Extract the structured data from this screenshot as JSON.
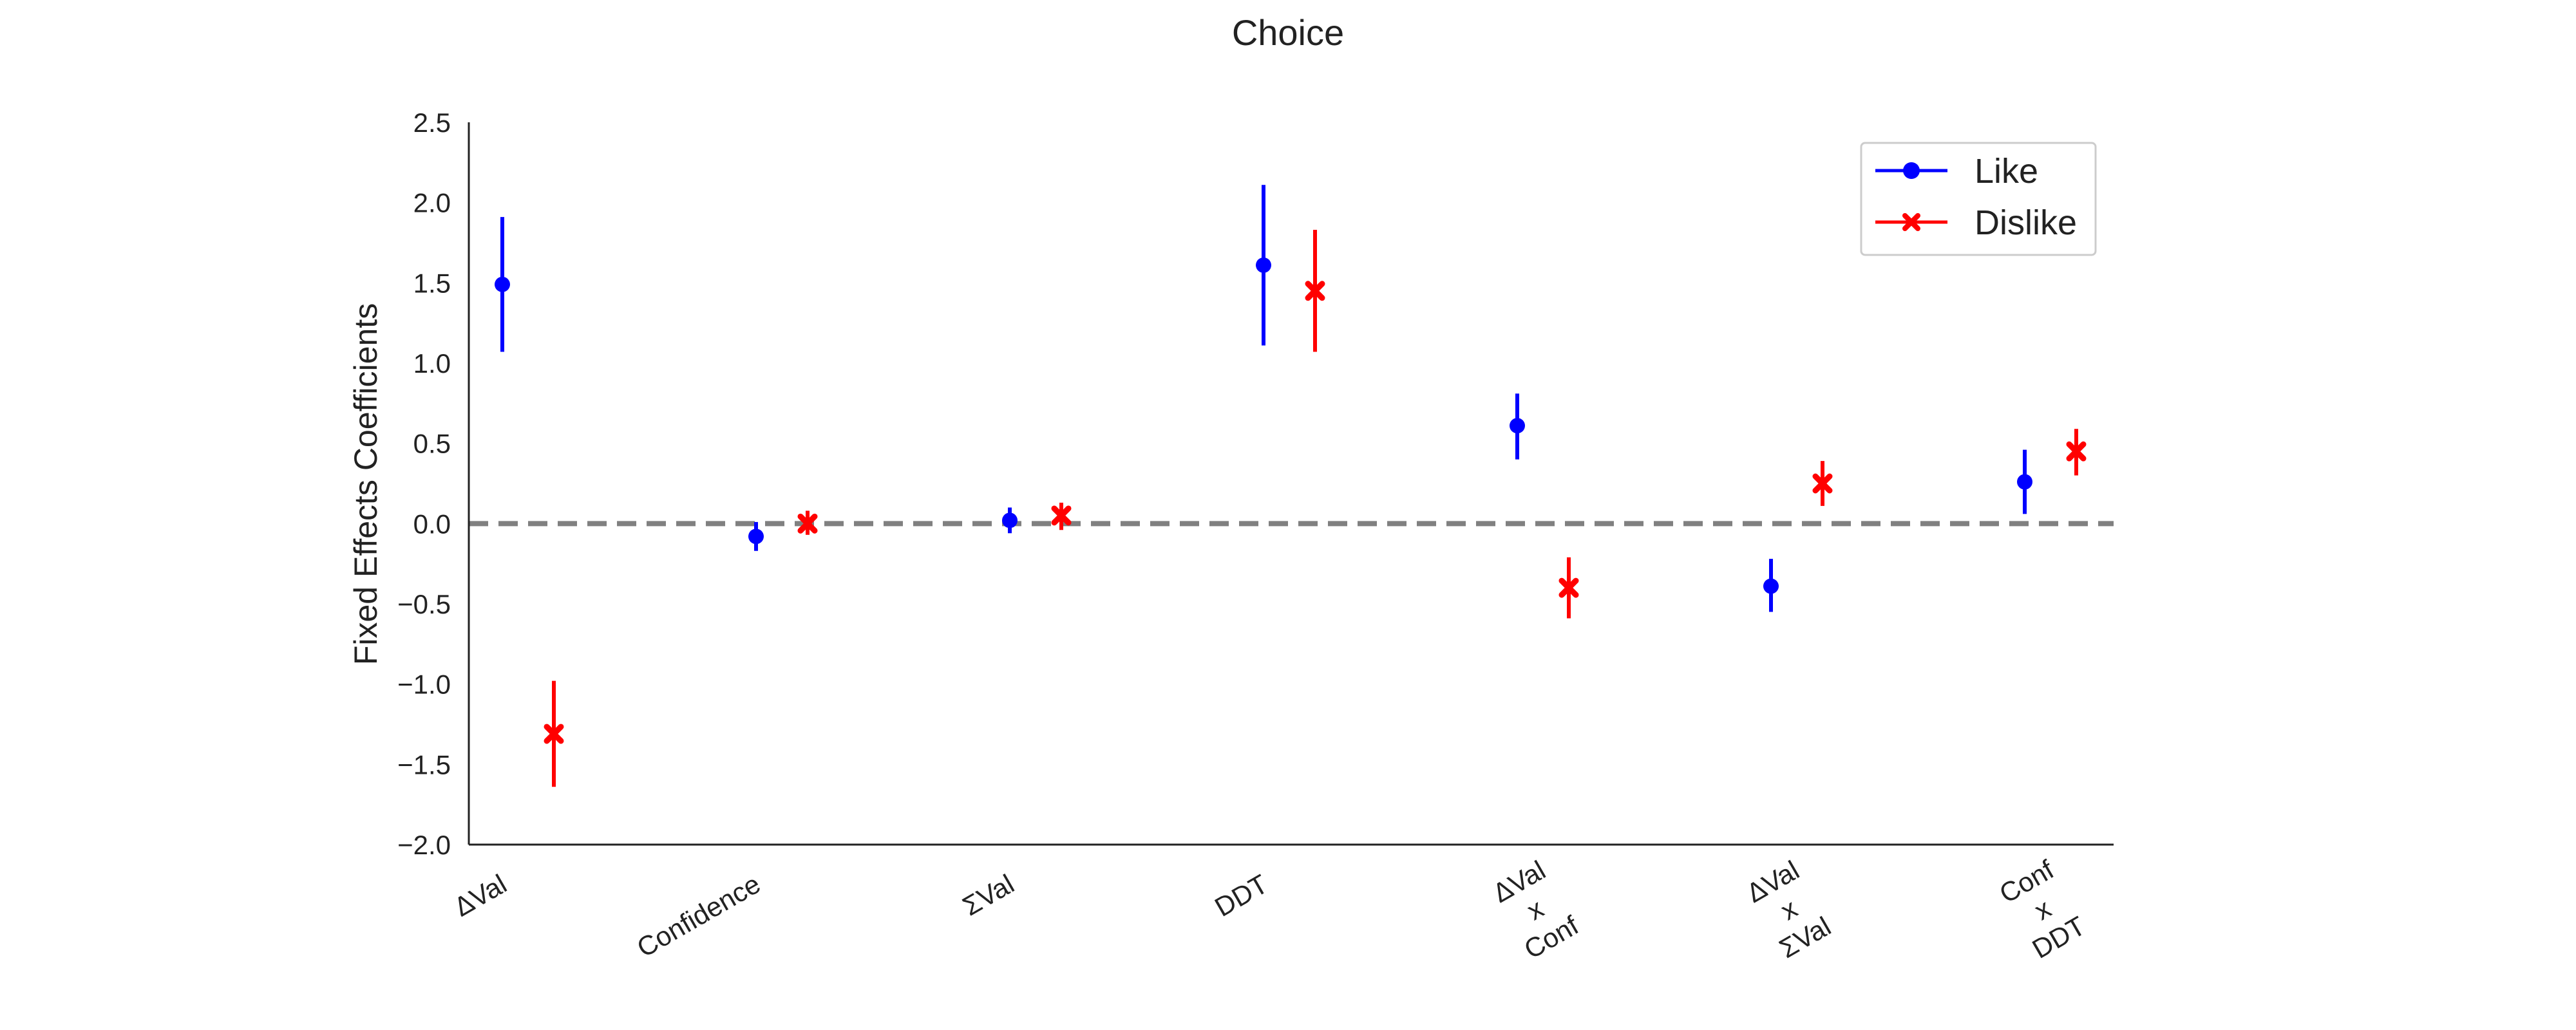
{
  "chart_data": {
    "type": "errorbar",
    "title": "Choice",
    "xlabel": "",
    "ylabel": "Fixed Effects Coefficients",
    "ylim": [
      -2.0,
      2.5
    ],
    "yticks": [
      "2.5",
      "2.0",
      "1.5",
      "1.0",
      "0.5",
      "0.0",
      "−0.5",
      "−1.0",
      "−1.5",
      "−2.0"
    ],
    "ytick_values": [
      2.5,
      2.0,
      1.5,
      1.0,
      0.5,
      0.0,
      -0.5,
      -1.0,
      -1.5,
      -2.0
    ],
    "reference_line": {
      "y": 0.0,
      "style": "dashed",
      "color": "#808080"
    },
    "grid": false,
    "legend_position": "top-right",
    "categories": [
      [
        "ΔVal"
      ],
      [
        "Confidence"
      ],
      [
        "ΣVal"
      ],
      [
        "DDT"
      ],
      [
        "ΔVal",
        "x",
        "Conf"
      ],
      [
        "ΔVal",
        "x",
        "ΣVal"
      ],
      [
        "Conf",
        "x",
        "DDT"
      ]
    ],
    "series": [
      {
        "name": "Like",
        "color": "#0000ff",
        "marker": "circle",
        "values": [
          1.49,
          -0.08,
          0.02,
          1.61,
          0.61,
          -0.39,
          0.26
        ],
        "lower": [
          1.07,
          -0.17,
          -0.06,
          1.11,
          0.4,
          -0.55,
          0.06
        ],
        "upper": [
          1.91,
          0.01,
          0.1,
          2.11,
          0.81,
          -0.22,
          0.46
        ]
      },
      {
        "name": "Dislike",
        "color": "#ff0000",
        "marker": "x",
        "values": [
          -1.31,
          0.0,
          0.05,
          1.45,
          -0.4,
          0.25,
          0.45
        ],
        "lower": [
          -1.64,
          -0.07,
          -0.04,
          1.07,
          -0.59,
          0.11,
          0.3
        ],
        "upper": [
          -0.98,
          0.08,
          0.13,
          1.83,
          -0.21,
          0.39,
          0.59
        ]
      }
    ]
  }
}
